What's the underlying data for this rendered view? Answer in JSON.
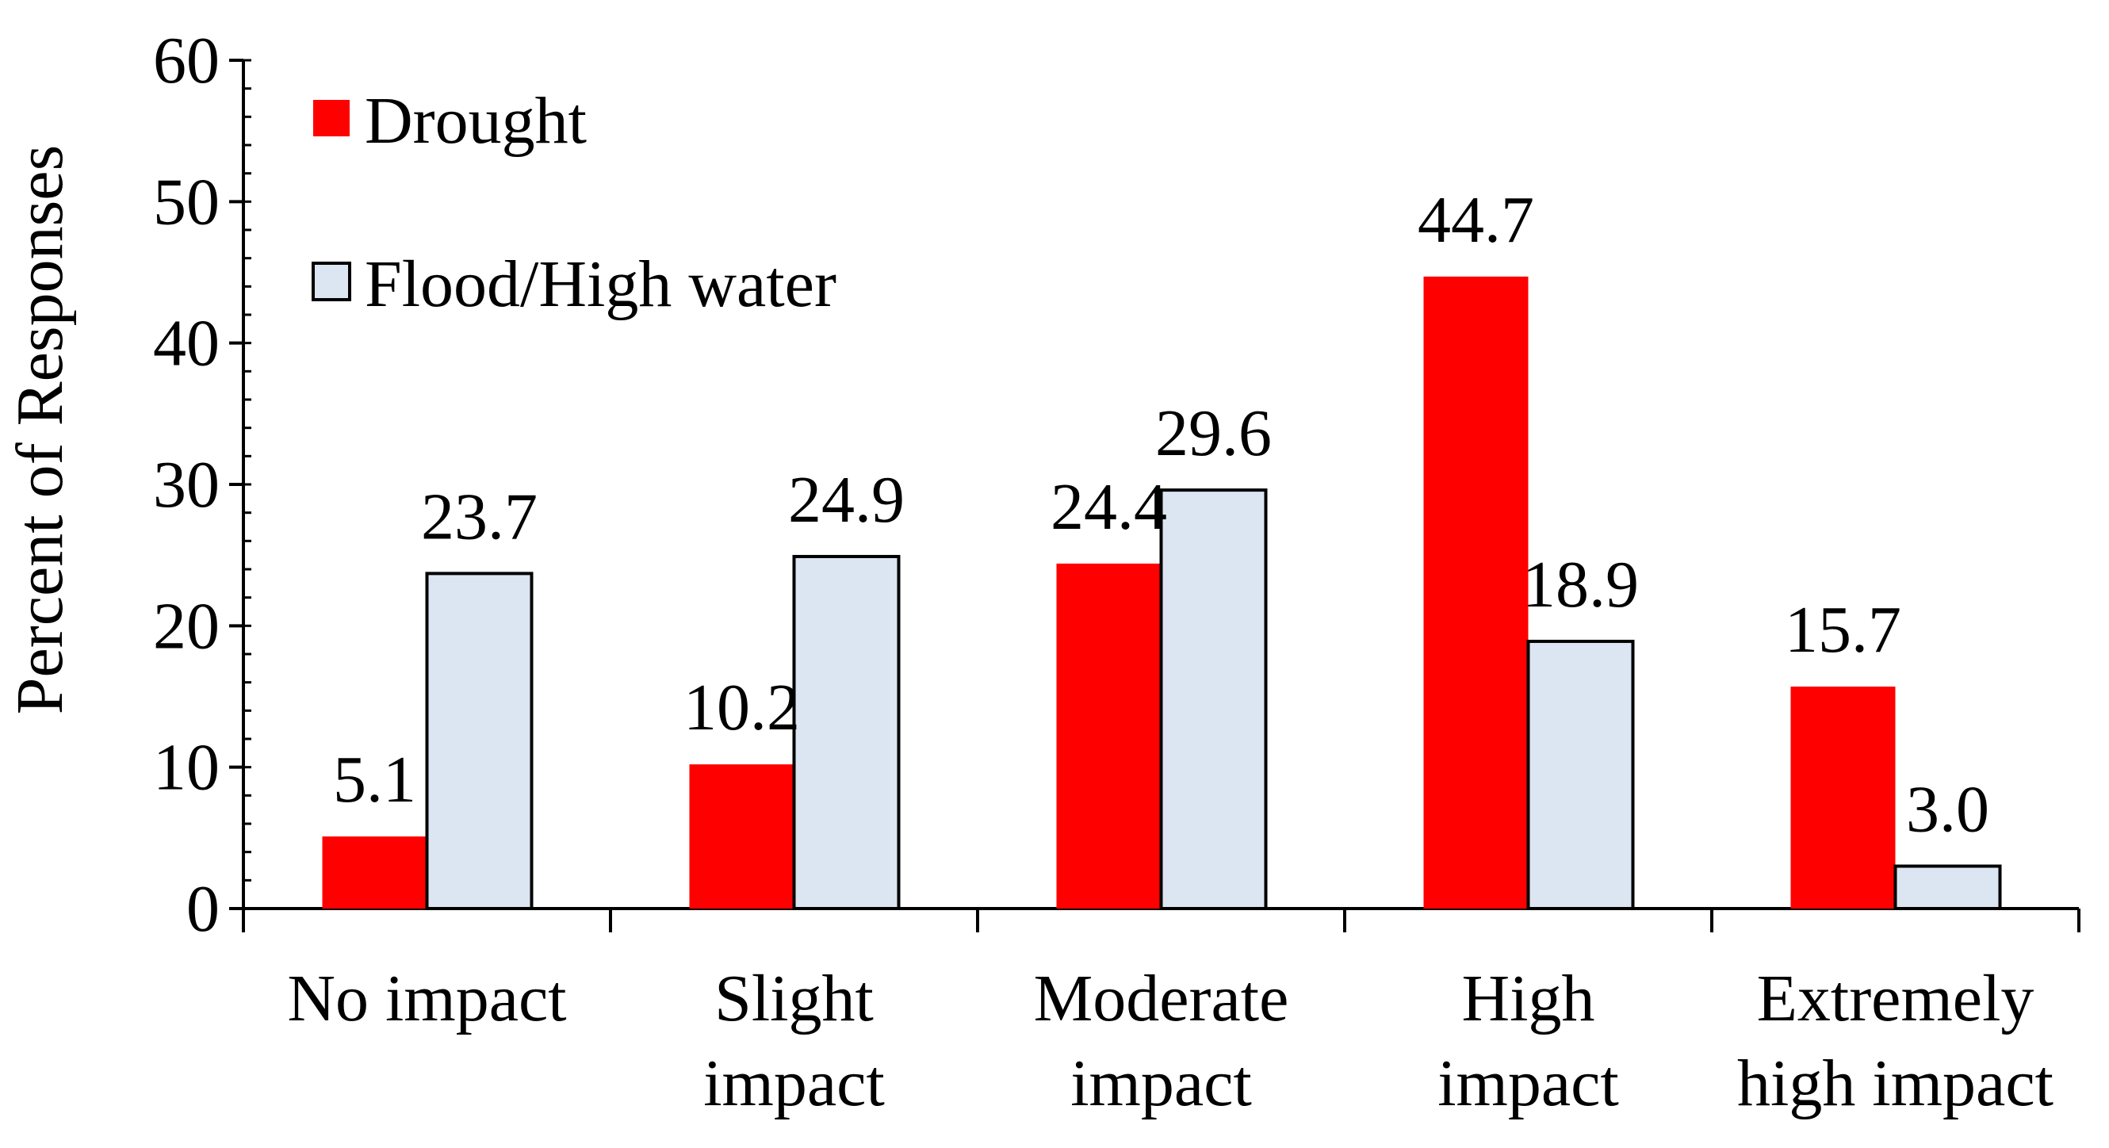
{
  "chart_data": {
    "type": "bar",
    "title": "",
    "ylabel": "Percent of Responses",
    "xlabel": "",
    "ylim": [
      0,
      60
    ],
    "yticks": [
      0,
      10,
      20,
      30,
      40,
      50,
      60
    ],
    "ytick_labels": [
      "0",
      "10",
      "20",
      "30",
      "40",
      "50",
      "60"
    ],
    "categories": [
      [
        "No impact"
      ],
      [
        "Slight",
        "impact"
      ],
      [
        "Moderate",
        "impact"
      ],
      [
        "High",
        "impact"
      ],
      [
        "Extremely",
        "high impact"
      ]
    ],
    "series": [
      {
        "name": "Drought",
        "color": "#ff0000",
        "outline": "none",
        "values": [
          5.1,
          10.2,
          24.4,
          44.7,
          15.7
        ],
        "labels": [
          "5.1",
          "10.2",
          "24.4",
          "44.7",
          "15.7"
        ]
      },
      {
        "name": "Flood/High water",
        "color": "#dce6f2",
        "outline": "#000000",
        "values": [
          23.7,
          24.9,
          29.6,
          18.9,
          3.0
        ],
        "labels": [
          "23.7",
          "24.9",
          "29.6",
          "18.9",
          "3.0"
        ]
      }
    ],
    "legend_position": "top-left",
    "grid": false
  }
}
